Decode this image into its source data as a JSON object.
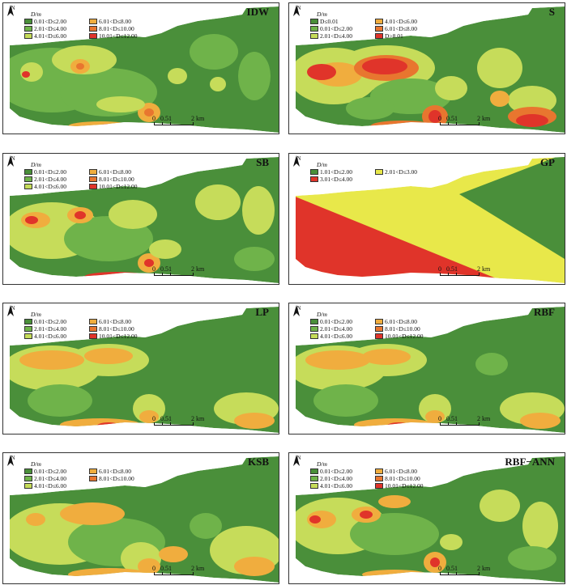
{
  "colors": {
    "c1": "#4a8f3a",
    "c2": "#6fb34a",
    "c3": "#c6dc5a",
    "c4": "#f0ad3e",
    "c5": "#e8762f",
    "c6": "#e0342a",
    "gp1": "#4a8f3a",
    "gp2": "#e8e84a",
    "gp3": "#e0342a"
  },
  "scale": {
    "t0": "0",
    "t1": "0.5",
    "t2": "1",
    "t3": "2 km"
  },
  "north": "N",
  "panels": [
    {
      "title": "IDW",
      "unit": "D/m",
      "legend": [
        "0.01<D≤2.00",
        "6.01<D≤8.00",
        "2.01<D≤4.00",
        "8.01<D≤10.00",
        "4.01<D≤6.00",
        "10.01<D≤12.00"
      ],
      "legend_colors": [
        "c1",
        "c4",
        "c2",
        "c5",
        "c3",
        "c6"
      ]
    },
    {
      "title": "S",
      "unit": "D/m",
      "legend": [
        "D≤0.01",
        "4.01<D≤6.00",
        "0.01<D≤2.00",
        "6.01<D≤8.00",
        "2.01<D≤4.00",
        "D>8.01"
      ],
      "legend_colors": [
        "c1",
        "c4",
        "c2",
        "c5",
        "c3",
        "c6"
      ]
    },
    {
      "title": "SB",
      "unit": "D/m",
      "legend": [
        "0.01<D≤2.00",
        "6.01<D≤8.00",
        "2.01<D≤4.00",
        "8.01<D≤10.00",
        "4.01<D≤6.00",
        "10.01<D≤12.00"
      ],
      "legend_colors": [
        "c1",
        "c4",
        "c2",
        "c5",
        "c3",
        "c6"
      ]
    },
    {
      "title": "GP",
      "unit": "D/m",
      "legend": [
        "1.01<D≤2.00",
        "2.01<D≤3.00",
        "3.01<D≤4.00"
      ],
      "legend_colors": [
        "gp1",
        "gp2",
        "gp3"
      ]
    },
    {
      "title": "LP",
      "unit": "D/m",
      "legend": [
        "0.01<D≤2.00",
        "6.01<D≤8.00",
        "2.01<D≤4.00",
        "8.01<D≤10.00",
        "4.01<D≤6.00",
        "10.01<D≤12.00"
      ],
      "legend_colors": [
        "c1",
        "c4",
        "c2",
        "c5",
        "c3",
        "c6"
      ]
    },
    {
      "title": "RBF",
      "unit": "D/m",
      "legend": [
        "0.01<D≤2.00",
        "6.01<D≤8.00",
        "2.01<D≤4.00",
        "8.01<D≤10.00",
        "4.01<D≤6.00",
        "10.01<D≤12.00"
      ],
      "legend_colors": [
        "c1",
        "c4",
        "c2",
        "c5",
        "c3",
        "c6"
      ]
    },
    {
      "title": "KSB",
      "unit": "D/m",
      "legend": [
        "0.01<D≤2.00",
        "6.01<D≤8.00",
        "2.01<D≤4.00",
        "8.01<D≤10.00",
        "4.01<D≤6.00"
      ],
      "legend_colors": [
        "c1",
        "c4",
        "c2",
        "c5",
        "c3"
      ]
    },
    {
      "title": "RBF−ANN",
      "unit": "D/m",
      "legend": [
        "0.01<D≤2.00",
        "6.01<D≤8.00",
        "2.01<D≤4.00",
        "8.01<D≤10.00",
        "4.01<D≤6.00",
        "10.01<D≤12.00"
      ],
      "legend_colors": [
        "c1",
        "c4",
        "c2",
        "c5",
        "c3",
        "c6"
      ]
    }
  ]
}
